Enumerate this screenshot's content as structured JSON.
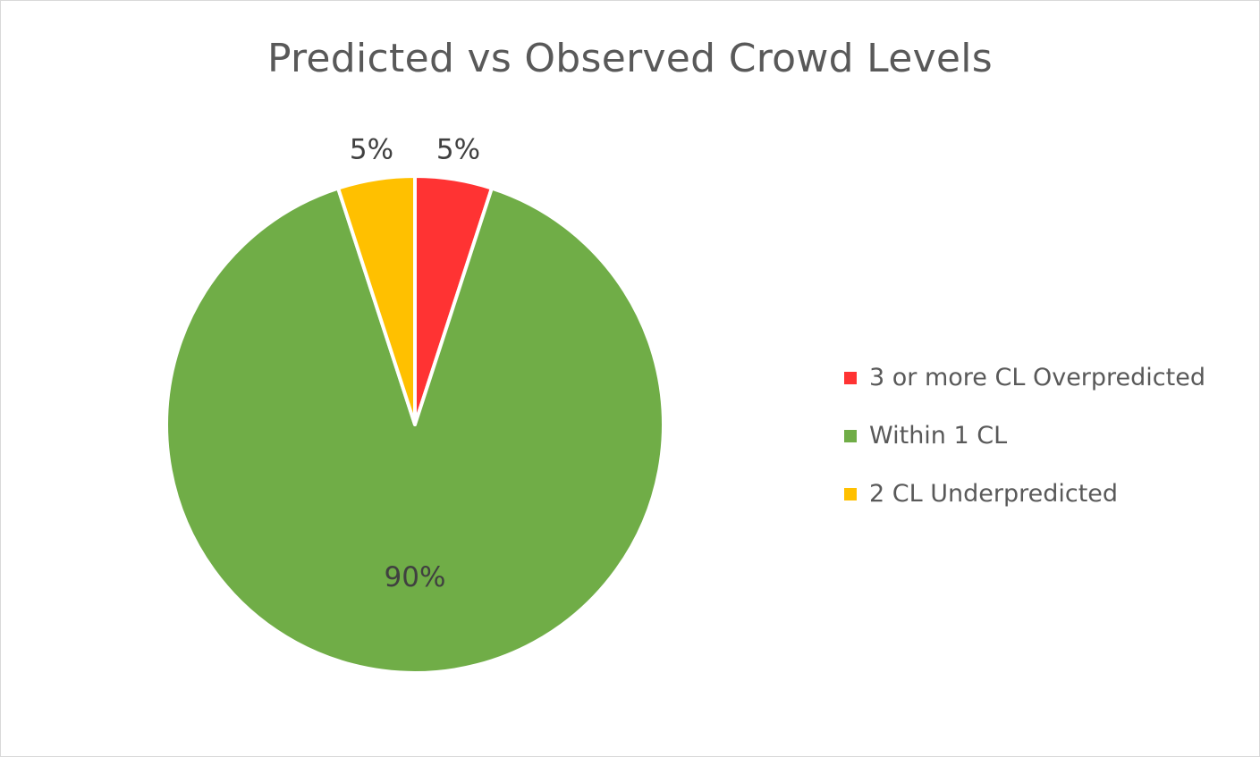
{
  "chart_data": {
    "type": "pie",
    "title": "Predicted vs Observed Crowd Levels",
    "slices": [
      {
        "name": "3 or more CL Overpredicted",
        "value": 5,
        "label": "5%",
        "color": "#ff3333"
      },
      {
        "name": "Within 1 CL",
        "value": 90,
        "label": "90%",
        "color": "#70ad47"
      },
      {
        "name": "2 CL Underpredicted",
        "value": 5,
        "label": "5%",
        "color": "#ffc000"
      }
    ],
    "start_angle_deg": 0,
    "direction": "clockwise",
    "slice_border_color": "#ffffff",
    "legend_position": "right"
  }
}
